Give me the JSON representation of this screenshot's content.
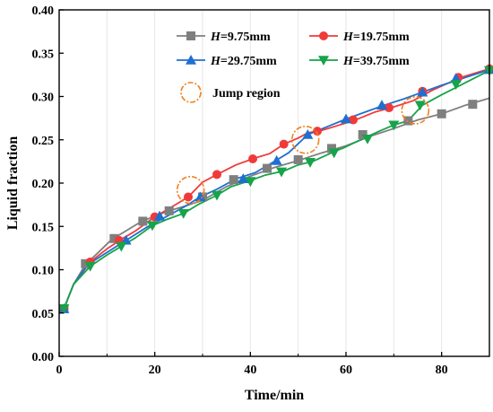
{
  "chart_data": {
    "type": "line",
    "xlabel": "Time/min",
    "ylabel": "Liquid fraction",
    "xlim": [
      0,
      90
    ],
    "ylim": [
      0.0,
      0.4
    ],
    "xticks": [
      "0",
      "20",
      "40",
      "60",
      "80"
    ],
    "yticks": [
      "0.00",
      "0.05",
      "0.10",
      "0.15",
      "0.20",
      "0.25",
      "0.30",
      "0.35",
      "0.40"
    ],
    "grid": true,
    "legend_position": "top-right",
    "series": [
      {
        "name_prefix": "H",
        "name_value": "=9.75mm",
        "color": "#7f7f7f",
        "marker": "square",
        "x": [
          1,
          3,
          5.5,
          8,
          11,
          14,
          17,
          20,
          23,
          26,
          30,
          35,
          40,
          45,
          50,
          55,
          60,
          65,
          70,
          75,
          80,
          85,
          90
        ],
        "y": [
          0.055,
          0.083,
          0.106,
          0.119,
          0.135,
          0.145,
          0.155,
          0.162,
          0.168,
          0.173,
          0.18,
          0.196,
          0.208,
          0.218,
          0.226,
          0.235,
          0.243,
          0.254,
          0.263,
          0.273,
          0.28,
          0.29,
          0.298
        ],
        "markers_x": [
          1,
          5.5,
          11.5,
          17.5,
          23,
          30,
          36.5,
          43.5,
          50,
          57,
          63.5,
          73,
          80,
          86.5
        ],
        "markers_y": [
          0.055,
          0.107,
          0.136,
          0.156,
          0.168,
          0.184,
          0.204,
          0.217,
          0.227,
          0.24,
          0.256,
          0.272,
          0.28,
          0.291
        ]
      },
      {
        "name_prefix": "H",
        "name_value": "=19.75mm",
        "color": "#f03a3a",
        "marker": "circle",
        "x": [
          1,
          3,
          6.5,
          10,
          13,
          16,
          20,
          24,
          27,
          30,
          33,
          37,
          41,
          44,
          47,
          50,
          52,
          55,
          58,
          62,
          66,
          70,
          74,
          78,
          84,
          90
        ],
        "y": [
          0.055,
          0.083,
          0.109,
          0.124,
          0.135,
          0.145,
          0.161,
          0.174,
          0.184,
          0.201,
          0.21,
          0.221,
          0.229,
          0.234,
          0.245,
          0.252,
          0.258,
          0.261,
          0.266,
          0.273,
          0.282,
          0.288,
          0.295,
          0.307,
          0.322,
          0.332
        ],
        "markers_x": [
          1,
          6.5,
          12.5,
          20,
          27,
          33,
          40.5,
          47,
          54,
          61.5,
          69,
          76,
          83.5,
          90
        ],
        "markers_y": [
          0.055,
          0.109,
          0.134,
          0.161,
          0.184,
          0.21,
          0.228,
          0.245,
          0.26,
          0.273,
          0.287,
          0.306,
          0.322,
          0.332
        ]
      },
      {
        "name_prefix": "H",
        "name_value": "=29.75mm",
        "color": "#1f6fd0",
        "marker": "triangle-up",
        "x": [
          1,
          3,
          6,
          10,
          14,
          18,
          22,
          26,
          29.5,
          33,
          37,
          41,
          45,
          48,
          52,
          56,
          60,
          64,
          68,
          72,
          76,
          80,
          85,
          90
        ],
        "y": [
          0.055,
          0.083,
          0.106,
          0.12,
          0.134,
          0.148,
          0.16,
          0.172,
          0.184,
          0.193,
          0.205,
          0.212,
          0.225,
          0.235,
          0.256,
          0.265,
          0.274,
          0.282,
          0.29,
          0.297,
          0.305,
          0.313,
          0.322,
          0.331
        ],
        "markers_x": [
          1,
          14,
          21,
          29.5,
          38.5,
          45.5,
          52,
          60,
          67.5,
          76,
          83,
          90
        ],
        "markers_y": [
          0.055,
          0.134,
          0.162,
          0.184,
          0.205,
          0.226,
          0.256,
          0.274,
          0.29,
          0.305,
          0.321,
          0.331
        ]
      },
      {
        "name_prefix": "H",
        "name_value": "=39.75mm",
        "color": "#16a34a",
        "marker": "triangle-down",
        "x": [
          1,
          3,
          6.5,
          10,
          13,
          16,
          19.5,
          22.5,
          26,
          29,
          33,
          36,
          40,
          43,
          47,
          50,
          53,
          57,
          60,
          63,
          67,
          70,
          73,
          76,
          80,
          85,
          90
        ],
        "y": [
          0.055,
          0.083,
          0.104,
          0.117,
          0.127,
          0.137,
          0.151,
          0.158,
          0.165,
          0.175,
          0.186,
          0.196,
          0.203,
          0.209,
          0.214,
          0.221,
          0.225,
          0.235,
          0.242,
          0.25,
          0.26,
          0.267,
          0.272,
          0.29,
          0.302,
          0.316,
          0.33
        ],
        "markers_x": [
          1,
          6.5,
          13,
          19.5,
          26,
          33,
          40,
          46.5,
          52.5,
          57.5,
          64.5,
          70,
          75.5,
          83,
          90
        ],
        "markers_y": [
          0.055,
          0.104,
          0.127,
          0.151,
          0.165,
          0.186,
          0.202,
          0.213,
          0.224,
          0.235,
          0.251,
          0.267,
          0.29,
          0.314,
          0.33
        ]
      }
    ],
    "annotations": {
      "jump_region_label": "Jump region",
      "jump_region_color": "#f08020",
      "jump_regions": [
        {
          "x": 27.5,
          "y": 0.192
        },
        {
          "x": 51.5,
          "y": 0.25
        },
        {
          "x": 74.5,
          "y": 0.284
        }
      ]
    }
  }
}
